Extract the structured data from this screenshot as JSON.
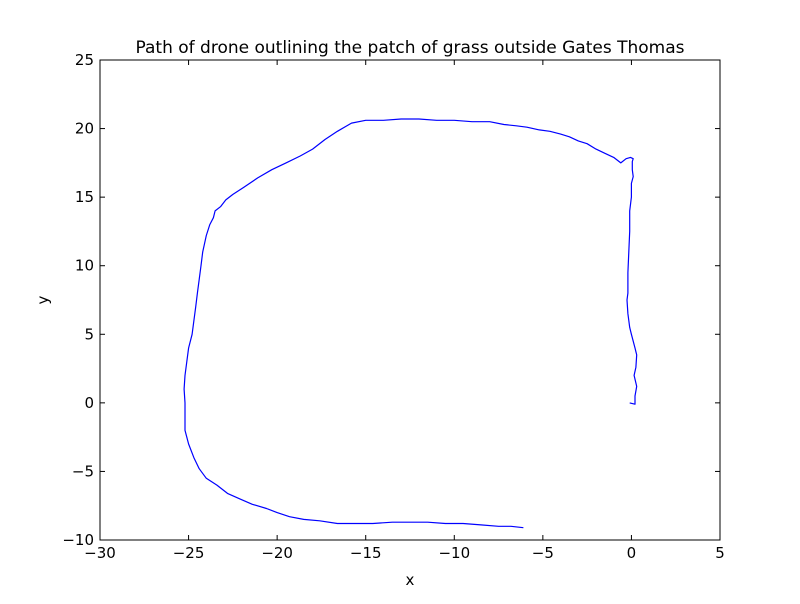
{
  "chart_data": {
    "type": "line",
    "title": "Path of drone outlining the patch of grass outside Gates Thomas",
    "xlabel": "x",
    "ylabel": "y",
    "xlim": [
      -30,
      5
    ],
    "ylim": [
      -10,
      25
    ],
    "xticks": [
      -30,
      -25,
      -20,
      -15,
      -10,
      -5,
      0,
      5
    ],
    "yticks": [
      -10,
      -5,
      0,
      5,
      10,
      15,
      20,
      25
    ],
    "xtick_labels": [
      "−30",
      "−25",
      "−20",
      "−15",
      "−10",
      "−5",
      "0",
      "5"
    ],
    "ytick_labels": [
      "−10",
      "−5",
      "0",
      "5",
      "10",
      "15",
      "20",
      "25"
    ],
    "grid": false,
    "legend": "none",
    "series": [
      {
        "color": "#0000ff",
        "x": [
          -0.1,
          0.2,
          0.2,
          0.3,
          0.15,
          0.25,
          0.3,
          0.2,
          0.0,
          -0.1,
          -0.2,
          -0.25,
          -0.2,
          -0.2,
          -0.15,
          -0.1,
          -0.1,
          0.0,
          0.0,
          0.1,
          0.05,
          0.05,
          0.1,
          -0.05,
          -0.3,
          -0.6,
          -1.0,
          -1.5,
          -2.0,
          -2.5,
          -3.0,
          -3.5,
          -4.0,
          -4.6,
          -5.2,
          -5.9,
          -6.5,
          -7.2,
          -8.0,
          -9.0,
          -10.0,
          -11.0,
          -12.0,
          -13.0,
          -14.0,
          -15.0,
          -15.8,
          -16.6,
          -17.3,
          -18.0,
          -18.7,
          -19.5,
          -20.3,
          -21.1,
          -21.9,
          -22.5,
          -22.9,
          -23.2,
          -23.5,
          -23.6,
          -23.8,
          -24.0,
          -24.2,
          -24.3,
          -24.4,
          -24.5,
          -24.6,
          -24.7,
          -24.8,
          -25.0,
          -25.1,
          -25.2,
          -25.25,
          -25.2,
          -25.2,
          -25.0,
          -24.7,
          -24.4,
          -24.0,
          -23.4,
          -22.8,
          -22.1,
          -21.4,
          -20.6,
          -20.0,
          -19.3,
          -18.5,
          -17.6,
          -16.6,
          -15.6,
          -14.6,
          -13.5,
          -12.5,
          -11.5,
          -10.5,
          -9.5,
          -8.5,
          -7.5,
          -6.8,
          -6.1
        ],
        "y": [
          0.0,
          -0.1,
          0.5,
          1.2,
          2.0,
          2.6,
          3.5,
          4.0,
          5.0,
          5.5,
          6.5,
          7.5,
          8.0,
          9.5,
          11.0,
          12.5,
          14.0,
          15.0,
          16.0,
          16.5,
          17.0,
          17.6,
          17.8,
          17.9,
          17.8,
          17.5,
          17.9,
          18.2,
          18.5,
          18.9,
          19.1,
          19.4,
          19.6,
          19.8,
          19.9,
          20.1,
          20.2,
          20.3,
          20.5,
          20.5,
          20.6,
          20.6,
          20.7,
          20.7,
          20.6,
          20.6,
          20.4,
          19.8,
          19.2,
          18.5,
          18.0,
          17.5,
          17.0,
          16.4,
          15.7,
          15.2,
          14.8,
          14.3,
          14.0,
          13.5,
          13.0,
          12.2,
          11.0,
          10.0,
          9.0,
          8.0,
          7.0,
          6.0,
          5.0,
          4.0,
          3.0,
          2.0,
          1.0,
          0.0,
          -2.0,
          -3.0,
          -4.0,
          -4.8,
          -5.5,
          -6.0,
          -6.6,
          -7.0,
          -7.4,
          -7.7,
          -8.0,
          -8.3,
          -8.5,
          -8.6,
          -8.8,
          -8.8,
          -8.8,
          -8.7,
          -8.7,
          -8.7,
          -8.8,
          -8.8,
          -8.9,
          -9.0,
          -9.0,
          -9.1
        ]
      }
    ]
  }
}
